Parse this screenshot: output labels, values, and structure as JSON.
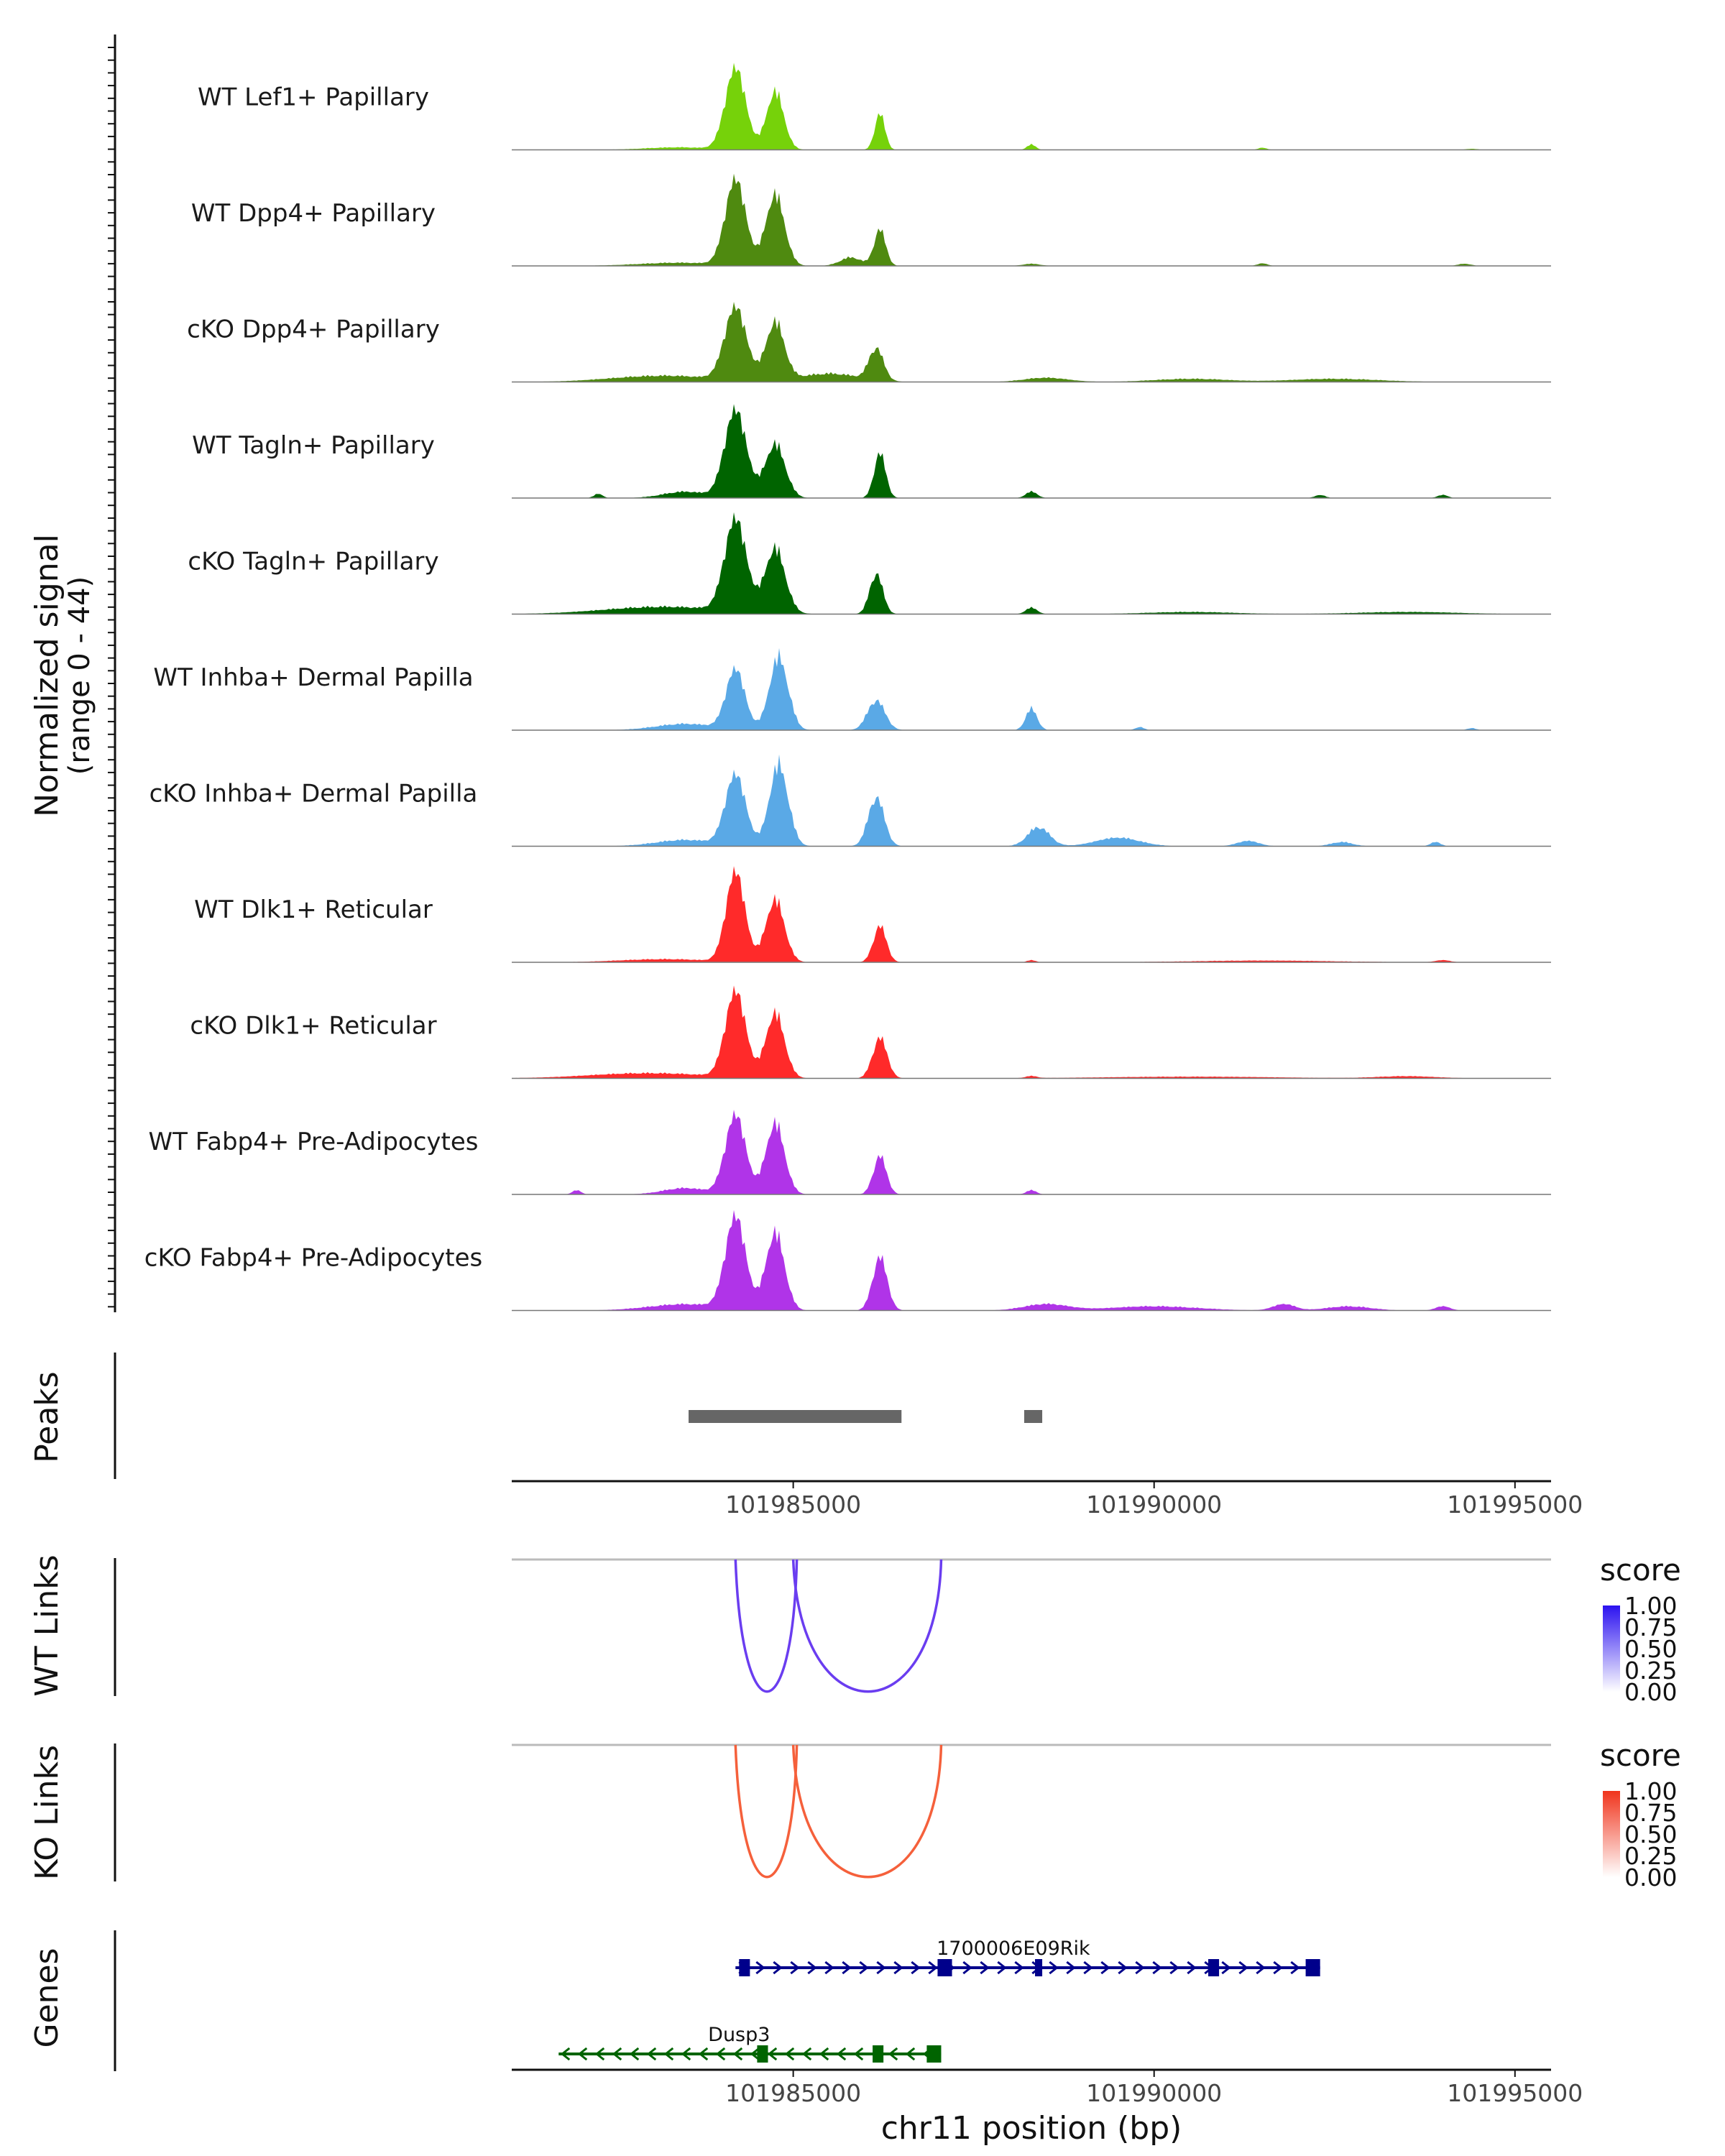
{
  "chart_data": {
    "type": "coverage-track",
    "xlabel": "chr11 position (bp)",
    "ylabel": "Normalized signal",
    "yrange_label": "(range 0 - 44)",
    "yrange": [
      0,
      44
    ],
    "xlim": [
      101981100,
      101995500
    ],
    "xticks": [
      101985000,
      101990000,
      101995000
    ],
    "tracks": [
      {
        "name": "WT Lef1+ Papillary",
        "color": "#76d20a",
        "peaks": [
          [
            101984200,
            38,
            140
          ],
          [
            101984750,
            27,
            120
          ],
          [
            101986200,
            17,
            70
          ],
          [
            101983400,
            1.2,
            450
          ],
          [
            101988300,
            2.5,
            60
          ],
          [
            101991500,
            1.0,
            60
          ],
          [
            101994400,
            0.5,
            80
          ]
        ]
      },
      {
        "name": "WT Dpp4+ Papillary",
        "color": "#4f8a10",
        "peaks": [
          [
            101984200,
            40,
            140
          ],
          [
            101984750,
            33,
            130
          ],
          [
            101986200,
            17,
            80
          ],
          [
            101983400,
            1.5,
            550
          ],
          [
            101985800,
            4,
            150
          ],
          [
            101988300,
            1,
            120
          ],
          [
            101991500,
            1.2,
            70
          ],
          [
            101994300,
            1,
            90
          ]
        ]
      },
      {
        "name": "cKO Dpp4+ Papillary",
        "color": "#4f8a10",
        "peaks": [
          [
            101984200,
            34,
            150
          ],
          [
            101984750,
            27,
            130
          ],
          [
            101986150,
            15,
            100
          ],
          [
            101983200,
            3,
            700
          ],
          [
            101985500,
            4,
            400
          ],
          [
            101988500,
            2,
            300
          ],
          [
            101990500,
            1.5,
            500
          ],
          [
            101992500,
            1.5,
            600
          ]
        ]
      },
      {
        "name": "WT Tagln+ Papillary",
        "color": "#006400",
        "peaks": [
          [
            101984200,
            41,
            150
          ],
          [
            101984750,
            25,
            140
          ],
          [
            101986200,
            21,
            80
          ],
          [
            101983500,
            3,
            300
          ],
          [
            101982300,
            2,
            60
          ],
          [
            101988300,
            3,
            80
          ],
          [
            101992300,
            1.5,
            70
          ],
          [
            101994000,
            1.5,
            70
          ]
        ]
      },
      {
        "name": "cKO Tagln+ Papillary",
        "color": "#006400",
        "peaks": [
          [
            101984200,
            43,
            150
          ],
          [
            101984750,
            30,
            140
          ],
          [
            101986150,
            19,
            90
          ],
          [
            101983200,
            3.5,
            800
          ],
          [
            101988300,
            3,
            80
          ],
          [
            101990500,
            1,
            600
          ],
          [
            101993500,
            1,
            700
          ]
        ]
      },
      {
        "name": "WT Inhba+ Dermal Papilla",
        "color": "#5aa9e6",
        "peaks": [
          [
            101984200,
            28,
            130
          ],
          [
            101984800,
            34,
            130
          ],
          [
            101986150,
            14,
            120
          ],
          [
            101983500,
            3,
            400
          ],
          [
            101988300,
            10,
            80
          ],
          [
            101989800,
            1.5,
            60
          ],
          [
            101994400,
            1,
            60
          ]
        ]
      },
      {
        "name": "cKO Inhba+ Dermal Papilla",
        "color": "#5aa9e6",
        "peaks": [
          [
            101984200,
            33,
            140
          ],
          [
            101984800,
            38,
            130
          ],
          [
            101986150,
            23,
            110
          ],
          [
            101983500,
            3,
            400
          ],
          [
            101988400,
            9,
            150
          ],
          [
            101989500,
            4,
            300
          ],
          [
            101991300,
            2.5,
            150
          ],
          [
            101992600,
            2,
            150
          ],
          [
            101993900,
            2,
            70
          ]
        ]
      },
      {
        "name": "WT Dlk1+ Reticular",
        "color": "#ff2a2a",
        "peaks": [
          [
            101984200,
            42,
            130
          ],
          [
            101984750,
            29,
            130
          ],
          [
            101986200,
            17,
            90
          ],
          [
            101983200,
            1.5,
            600
          ],
          [
            101988300,
            1,
            60
          ],
          [
            101991500,
            0.8,
            1000
          ],
          [
            101994000,
            1,
            100
          ]
        ]
      },
      {
        "name": "cKO Dlk1+ Reticular",
        "color": "#ff2a2a",
        "peaks": [
          [
            101984200,
            40,
            140
          ],
          [
            101984750,
            30,
            130
          ],
          [
            101986200,
            19,
            100
          ],
          [
            101983000,
            2.5,
            800
          ],
          [
            101988300,
            1,
            80
          ],
          [
            101990500,
            0.8,
            1200
          ],
          [
            101993500,
            1,
            400
          ]
        ]
      },
      {
        "name": "WT Fabp4+ Pre-Adipocytes",
        "color": "#b034e8",
        "peaks": [
          [
            101984200,
            37,
            140
          ],
          [
            101984750,
            33,
            130
          ],
          [
            101986200,
            18,
            90
          ],
          [
            101983500,
            3,
            300
          ],
          [
            101982000,
            2,
            60
          ],
          [
            101988300,
            2,
            70
          ]
        ]
      },
      {
        "name": "cKO Fabp4+ Pre-Adipocytes",
        "color": "#b034e8",
        "peaks": [
          [
            101984200,
            43,
            140
          ],
          [
            101984750,
            36,
            130
          ],
          [
            101986200,
            25,
            100
          ],
          [
            101983500,
            3,
            500
          ],
          [
            101988500,
            3,
            300
          ],
          [
            101990000,
            2,
            600
          ],
          [
            101991800,
            3,
            150
          ],
          [
            101992700,
            2,
            300
          ],
          [
            101994000,
            2,
            100
          ]
        ]
      }
    ],
    "peaks_track": {
      "label": "Peaks",
      "ranges": [
        [
          101983550,
          101986500
        ],
        [
          101988200,
          101988450
        ]
      ]
    },
    "link_tracks": [
      {
        "label": "WT Links",
        "legend_title": "score",
        "color": "#6a3df0",
        "legend_high": "#2b12f0",
        "legend_ticks": [
          "1.00",
          "0.75",
          "0.50",
          "0.25",
          "0.00"
        ],
        "arcs": [
          [
            101984200,
            101985000,
            0.4
          ],
          [
            101985000,
            101987000,
            0.55
          ]
        ]
      },
      {
        "label": "KO Links",
        "legend_title": "score",
        "color": "#f5603b",
        "legend_high": "#f0341c",
        "legend_ticks": [
          "1.00",
          "0.75",
          "0.50",
          "0.25",
          "0.00"
        ],
        "arcs": [
          [
            101984200,
            101985000,
            0.5
          ],
          [
            101985000,
            101987000,
            0.6
          ]
        ]
      }
    ],
    "genes_track": {
      "label": "Genes",
      "genes": [
        {
          "name": "1700006E09Rik",
          "strand": "+",
          "color": "#00008b",
          "start": 101984200,
          "end": 101992300,
          "exons": [
            [
              101984250,
              101984400
            ],
            [
              101987000,
              101987200
            ],
            [
              101988350,
              101988450
            ],
            [
              101990750,
              101990900
            ],
            [
              101992100,
              101992300
            ]
          ]
        },
        {
          "name": "Dusp3",
          "strand": "-",
          "color": "#006400",
          "start": 101981750,
          "end": 101987050,
          "exons": [
            [
              101984500,
              101984650
            ],
            [
              101986100,
              101986250
            ],
            [
              101986850,
              101987050
            ]
          ]
        }
      ]
    }
  }
}
